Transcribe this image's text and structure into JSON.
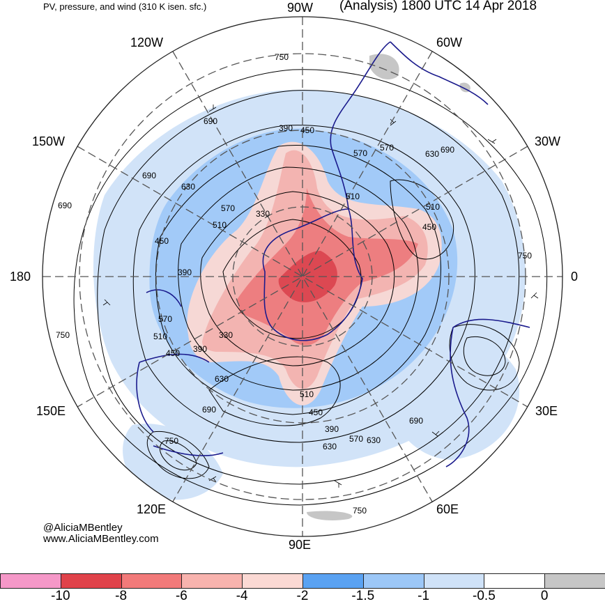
{
  "header": {
    "title_left": "PV, pressure, and wind (310 K isen. sfc.)",
    "title_right": "(Analysis) 1800 UTC 14 Apr 2018"
  },
  "longitude_labels": {
    "lon_90w": "90W",
    "lon_60w": "60W",
    "lon_30w": "30W",
    "lon_0": "0",
    "lon_30e": "30E",
    "lon_60e": "60E",
    "lon_90e": "90E",
    "lon_120e": "120E",
    "lon_150e": "150E",
    "lon_180": "180",
    "lon_150w": "150W",
    "lon_120w": "120W"
  },
  "pressure_labels": [
    "750",
    "690",
    "690",
    "630",
    "570",
    "510",
    "450",
    "390",
    "330",
    "330",
    "390",
    "450",
    "510",
    "570",
    "630",
    "690",
    "750",
    "750",
    "690",
    "630",
    "570",
    "510",
    "450",
    "390",
    "750",
    "690",
    "630",
    "570",
    "510",
    "450",
    "390",
    "450",
    "510",
    "570",
    "630",
    "750",
    "690"
  ],
  "credits": {
    "handle": "@AliciaMBentley",
    "website": "www.AliciaMBentley.com"
  },
  "colorbar": {
    "colors": [
      "#f598c8",
      "#e0424a",
      "#f27a7a",
      "#f8b3ae",
      "#fbd9d4",
      "#5aa2f2",
      "#9cc7f7",
      "#cfe2f8",
      "#ffffff",
      "#c6c6c6"
    ],
    "ticks": [
      "-10",
      "-8",
      "-6",
      "-4",
      "-2",
      "-1.5",
      "-1",
      "-0.5",
      "0"
    ]
  },
  "map_colors": {
    "pv_strong_neg": "#f27a7a",
    "pv_neg": "#f8b3ae",
    "pv_weak": "#9cc7f7",
    "pv_faint": "#cfe2f8",
    "coastline": "#1a1a8c",
    "contour": "#000000",
    "gray": "#c6c6c6"
  }
}
